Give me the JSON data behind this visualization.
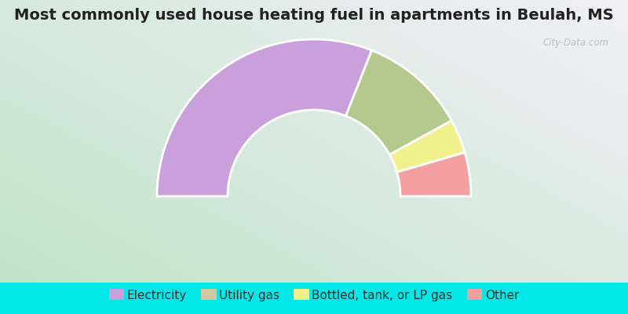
{
  "title": "Most commonly used house heating fuel in apartments in Beulah, MS",
  "categories": [
    "Electricity",
    "Utility gas",
    "Bottled, tank, or LP gas",
    "Other"
  ],
  "values": [
    62,
    22,
    7,
    9
  ],
  "colors": [
    "#c9a0dc",
    "#b5c98e",
    "#f0f08c",
    "#f4a0a0"
  ],
  "legend_colors": [
    "#c9a0dc",
    "#d4c8a0",
    "#f0f08c",
    "#f4a0a0"
  ],
  "bg_outer": "#00e8e8",
  "title_fontsize": 14,
  "legend_fontsize": 11,
  "outer_r": 1.0,
  "inner_r": 0.55
}
